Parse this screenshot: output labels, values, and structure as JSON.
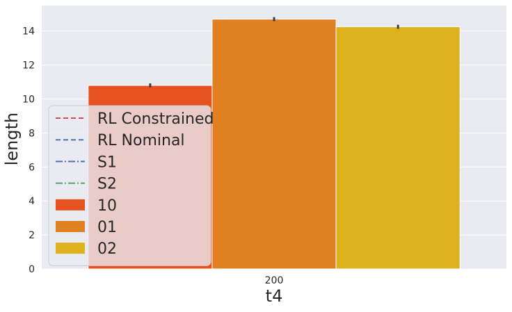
{
  "chart_data": {
    "type": "bar",
    "categories": [
      "200"
    ],
    "series": [
      {
        "name": "10",
        "values": [
          10.8
        ],
        "error": [
          0.12
        ],
        "color": "#e6521f"
      },
      {
        "name": "01",
        "values": [
          14.7
        ],
        "error": [
          0.12
        ],
        "color": "#e08020"
      },
      {
        "name": "02",
        "values": [
          14.25
        ],
        "error": [
          0.12
        ],
        "color": "#deb11f"
      }
    ],
    "reference_lines": [
      {
        "name": "RL Constrained",
        "style": "dashed",
        "color": "#c44e52"
      },
      {
        "name": "RL Nominal",
        "style": "dashed",
        "color": "#4c72b0"
      },
      {
        "name": "S1",
        "style": "dash-dot",
        "color": "#4c72b0"
      },
      {
        "name": "S2",
        "style": "dash-dot",
        "color": "#55a868"
      }
    ],
    "title": "",
    "xlabel": "t4",
    "ylabel": "length",
    "ylim": [
      0,
      15.5
    ],
    "yticks": [
      0,
      2,
      4,
      6,
      8,
      10,
      12,
      14
    ],
    "grid": true,
    "legend_position": "lower-left",
    "background": "#eaeaf2"
  }
}
